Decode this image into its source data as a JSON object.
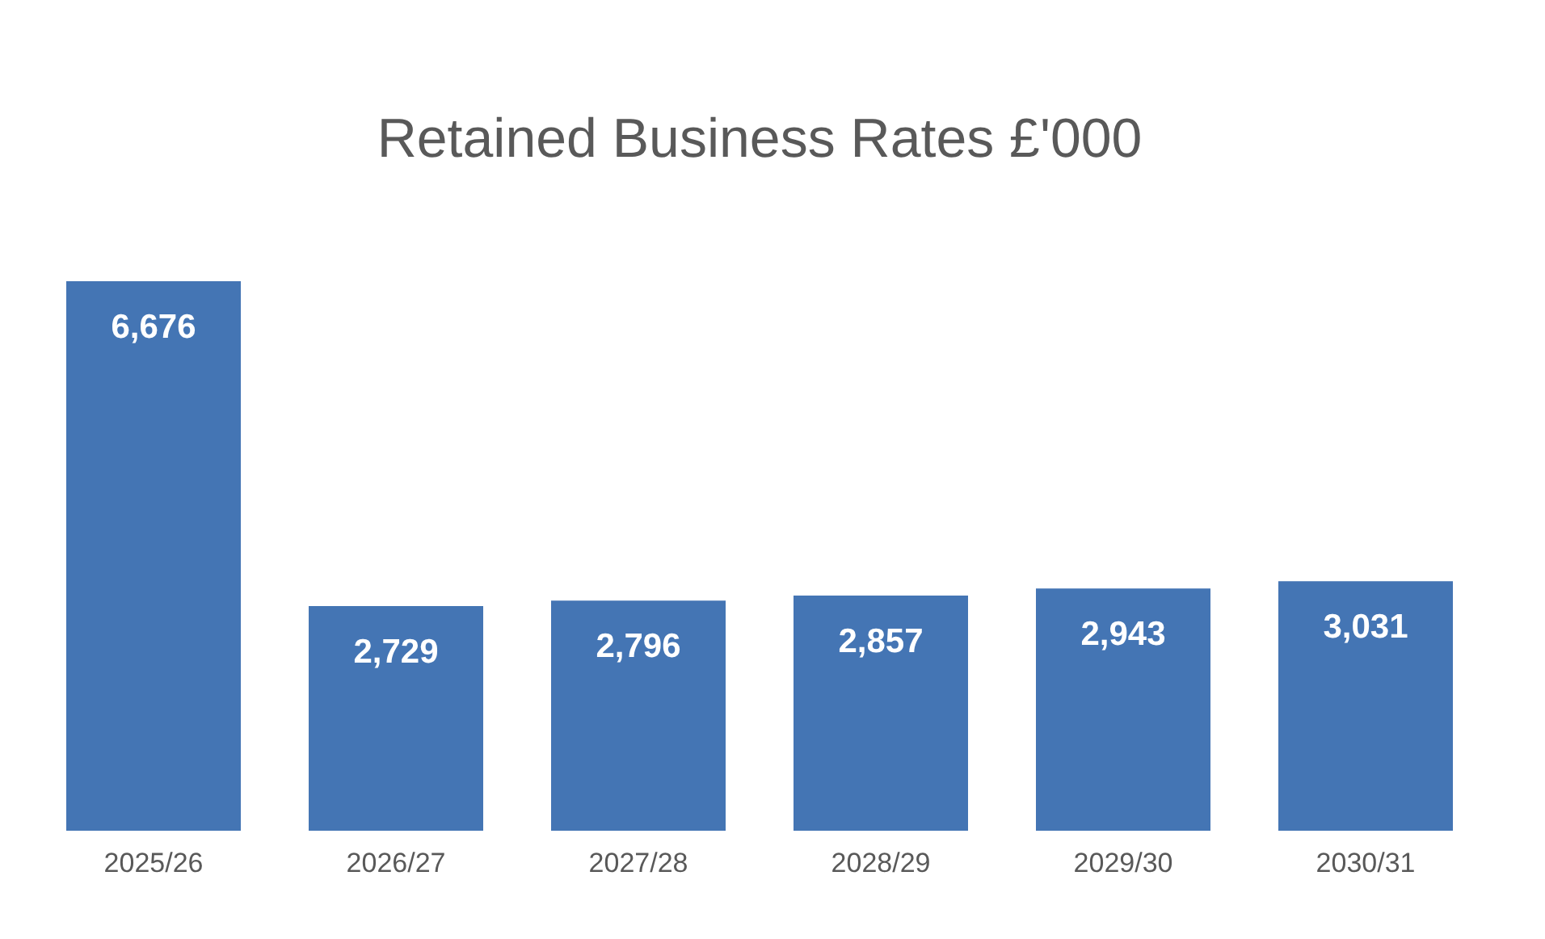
{
  "chart_data": {
    "type": "bar",
    "title": "Retained Business Rates £'000",
    "categories": [
      "2025/26",
      "2026/27",
      "2027/28",
      "2028/29",
      "2029/30",
      "2030/31"
    ],
    "values": [
      6676,
      2729,
      2796,
      2857,
      2943,
      3031
    ],
    "value_labels": [
      "6,676",
      "2,729",
      "2,796",
      "2,857",
      "2,943",
      "3,031"
    ],
    "color": "#4475b4",
    "tick_labels": "x",
    "grid": false
  }
}
